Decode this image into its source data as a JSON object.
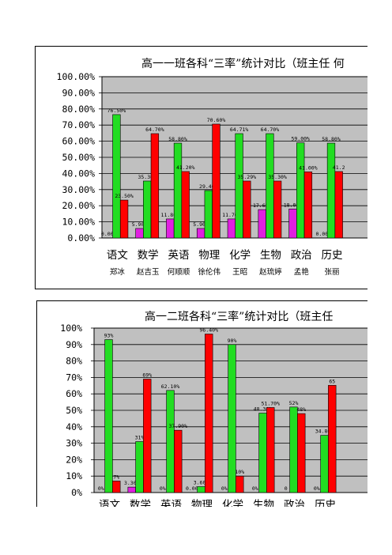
{
  "charts": [
    {
      "title": "高一一班各科“三率”统计对比（班主任  何",
      "chart_data": {
        "type": "bar",
        "categories": [
          "语文",
          "数学",
          "英语",
          "物理",
          "化学",
          "生物",
          "政治",
          "历史"
        ],
        "teachers": [
          "郑冰",
          "赵吉玉",
          "何顺顺",
          "徐伦伟",
          "王昭",
          "赵琉婷",
          "孟艳",
          "张丽"
        ],
        "ylim": [
          0,
          100
        ],
        "yticks": [
          "0.00%",
          "10.00%",
          "20.00%",
          "30.00%",
          "40.00%",
          "50.00%",
          "60.00%",
          "70.00%",
          "80.00%",
          "90.00%",
          "100.00%"
        ],
        "series": [
          {
            "color": "#e020e0",
            "values": [
              0,
              5.9,
              11.8,
              5.9,
              11.8,
              17.6,
              18,
              0
            ],
            "labels": [
              "0.00%",
              "5.90%",
              "11.80%",
              "5.90%",
              "11.76%",
              "17.65%",
              "18.00%",
              "0.00%"
            ]
          },
          {
            "color": "#22dd22",
            "values": [
              76.5,
              35.3,
              58.8,
              29.4,
              64.7,
              64.7,
              59,
              58.8
            ],
            "labels": [
              "76.50%",
              "35.30%",
              "58.80%",
              "29.40%",
              "64.71%",
              "64.70%",
              "59.00%",
              "58.80%"
            ]
          },
          {
            "color": "#ff0000",
            "values": [
              23.5,
              64.7,
              41.2,
              70.6,
              35.3,
              35.3,
              41,
              41.2
            ],
            "labels": [
              "23.50%",
              "64.70%",
              "41.20%",
              "70.60%",
              "35.29%",
              "35.30%",
              "41.00%",
              "41.2"
            ]
          }
        ]
      }
    },
    {
      "title": "高一二班各科“三率”统计对比（班主任",
      "chart_data": {
        "type": "bar",
        "categories": [
          "语文",
          "数学",
          "英语",
          "物理",
          "化学",
          "生物",
          "政治",
          "历史"
        ],
        "ylim": [
          0,
          100
        ],
        "yticks": [
          "0%",
          "10%",
          "20%",
          "30%",
          "40%",
          "50%",
          "60%",
          "70%",
          "80%",
          "90%",
          "100%"
        ],
        "series": [
          {
            "color": "#e020e0",
            "values": [
              0,
              3.3,
              0,
              0,
              0,
              0,
              0,
              0
            ],
            "labels": [
              "0%",
              "3.30%",
              "0%",
              "0.00%",
              "0%",
              "0%",
              "0",
              "0%"
            ]
          },
          {
            "color": "#22dd22",
            "values": [
              93,
              31,
              62.1,
              3.6,
              90,
              48.3,
              52,
              34.8
            ],
            "labels": [
              "93%",
              "31%",
              "62.10%",
              "3.60%",
              "90%",
              "48.30%",
              "52%",
              "34.80%"
            ]
          },
          {
            "color": "#ff0000",
            "values": [
              7,
              69,
              37.9,
              96.4,
              10,
              51.7,
              48,
              65.2
            ],
            "labels": [
              "7%",
              "69%",
              "37.90%",
              "96.40%",
              "10%",
              "51.70%",
              "48%",
              "65"
            ]
          }
        ]
      }
    }
  ]
}
